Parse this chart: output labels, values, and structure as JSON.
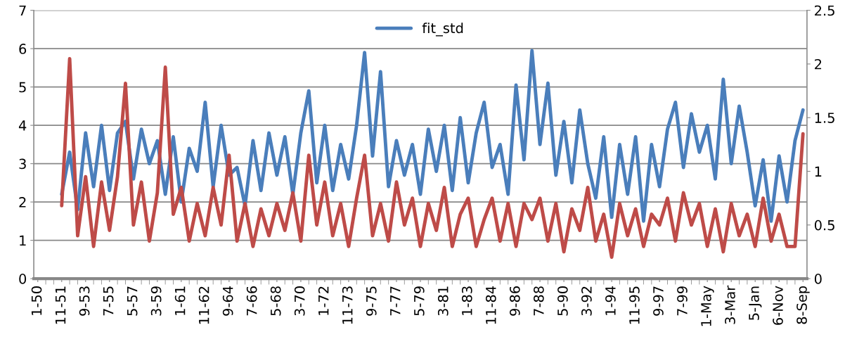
{
  "chart_data": {
    "type": "line",
    "categories": [
      "1-50",
      null,
      null,
      "11-51",
      null,
      null,
      "9-53",
      null,
      null,
      "7-55",
      null,
      null,
      "5-57",
      null,
      null,
      "3-59",
      null,
      null,
      "1-61",
      null,
      null,
      "11-62",
      null,
      null,
      "9-64",
      null,
      null,
      "7-66",
      null,
      null,
      "5-68",
      null,
      null,
      "3-70",
      null,
      null,
      "1-72",
      null,
      null,
      "11-73",
      null,
      null,
      "9-75",
      null,
      null,
      "7-77",
      null,
      null,
      "5-79",
      null,
      null,
      "3-81",
      null,
      null,
      "1-83",
      null,
      null,
      "11-84",
      null,
      null,
      "9-86",
      null,
      null,
      "7-88",
      null,
      null,
      "5-90",
      null,
      null,
      "3-92",
      null,
      null,
      "1-94",
      null,
      null,
      "11-95",
      null,
      null,
      "9-97",
      null,
      null,
      "7-99",
      null,
      null,
      "1-May",
      null,
      null,
      "3-Mar",
      null,
      null,
      "5-Jan",
      null,
      null,
      "6-Nov",
      null,
      null,
      "8-Sep"
    ],
    "series": [
      {
        "name": "fit_std",
        "color": "#4a7ebb",
        "values": [
          null,
          null,
          null,
          2.2,
          3.3,
          1.8,
          3.8,
          2.4,
          4.0,
          2.3,
          3.8,
          4.1,
          2.6,
          3.9,
          3.0,
          3.6,
          2.2,
          3.7,
          2.0,
          3.4,
          2.8,
          4.6,
          2.4,
          4.0,
          2.7,
          2.9,
          1.9,
          3.6,
          2.3,
          3.8,
          2.7,
          3.7,
          2.2,
          3.8,
          4.9,
          2.5,
          4.0,
          2.3,
          3.5,
          2.6,
          4.0,
          5.9,
          3.2,
          5.4,
          2.4,
          3.6,
          2.7,
          3.5,
          2.2,
          3.9,
          2.8,
          4.0,
          2.3,
          4.2,
          2.5,
          3.8,
          4.6,
          2.9,
          3.5,
          2.2,
          5.05,
          3.1,
          5.95,
          3.5,
          5.1,
          2.7,
          4.1,
          2.5,
          4.4,
          3.0,
          2.1,
          3.7,
          1.6,
          3.5,
          2.2,
          3.7,
          1.5,
          3.5,
          2.4,
          3.9,
          4.6,
          2.9,
          4.3,
          3.3,
          4.0,
          2.6,
          5.2,
          3.0,
          4.5,
          3.3,
          1.9,
          3.1,
          1.5,
          3.2,
          2.0,
          3.6,
          4.4
        ]
      },
      {
        "color": "#be4b48",
        "axis": "y2",
        "values": [
          null,
          null,
          null,
          0.68,
          2.05,
          0.4,
          0.95,
          0.3,
          0.9,
          0.45,
          0.95,
          1.82,
          0.5,
          0.9,
          0.35,
          0.8,
          1.97,
          0.6,
          0.85,
          0.35,
          0.7,
          0.4,
          0.85,
          0.5,
          1.15,
          0.35,
          0.7,
          0.3,
          0.65,
          0.4,
          0.7,
          0.45,
          0.8,
          0.35,
          1.15,
          0.5,
          0.9,
          0.4,
          0.7,
          0.3,
          0.75,
          1.15,
          0.4,
          0.7,
          0.35,
          0.9,
          0.5,
          0.75,
          0.3,
          0.7,
          0.45,
          0.85,
          0.3,
          0.6,
          0.75,
          0.3,
          0.55,
          0.75,
          0.35,
          0.7,
          0.3,
          0.7,
          0.55,
          0.75,
          0.35,
          0.7,
          0.25,
          0.65,
          0.45,
          0.85,
          0.35,
          0.6,
          0.2,
          0.7,
          0.4,
          0.65,
          0.3,
          0.6,
          0.5,
          0.75,
          0.35,
          0.8,
          0.5,
          0.7,
          0.3,
          0.65,
          0.25,
          0.7,
          0.4,
          0.6,
          0.3,
          0.75,
          0.35,
          0.6,
          0.3,
          0.3,
          1.35
        ]
      }
    ],
    "ylim": [
      0,
      7
    ],
    "yticks": [
      0,
      1,
      2,
      3,
      4,
      5,
      6,
      7
    ],
    "y2lim": [
      0,
      2.5
    ],
    "y2ticks": [
      0,
      0.5,
      1,
      1.5,
      2,
      2.5
    ],
    "grid": "y",
    "legend": "top",
    "marker": "none",
    "line_style": "solid"
  }
}
